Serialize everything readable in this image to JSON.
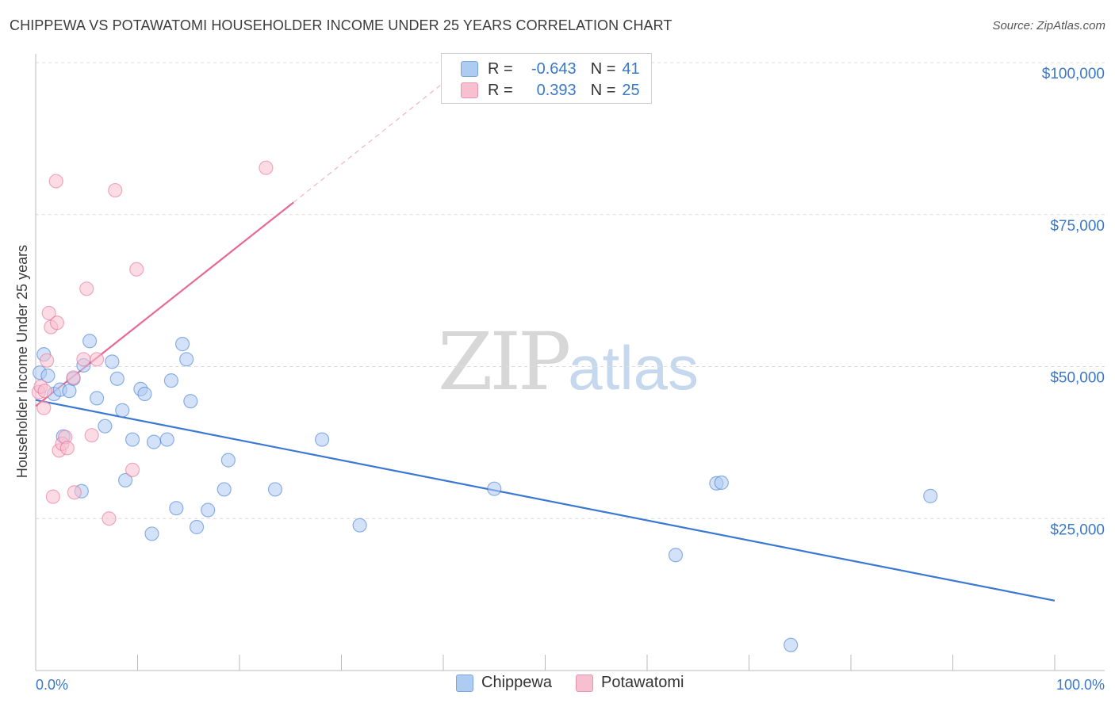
{
  "title": "CHIPPEWA VS POTAWATOMI HOUSEHOLDER INCOME UNDER 25 YEARS CORRELATION CHART",
  "source": "Source: ZipAtlas.com",
  "watermark": {
    "zip": "ZIP",
    "atlas": "atlas"
  },
  "legend": {
    "rows": [
      {
        "r_label": "R =",
        "r_value": "-0.643",
        "n_label": "N =",
        "n_value": "41",
        "color": "#aecbf2"
      },
      {
        "r_label": "R =",
        "r_value": "0.393",
        "n_label": "N =",
        "n_value": "25",
        "color": "#f7c0d0"
      }
    ]
  },
  "bottom_legend": [
    {
      "label": "Chippewa",
      "color": "#aecbf2"
    },
    {
      "label": "Potawatomi",
      "color": "#f7c0d0"
    }
  ],
  "chart_data": {
    "type": "scatter",
    "title": "CHIPPEWA VS POTAWATOMI HOUSEHOLDER INCOME UNDER 25 YEARS CORRELATION CHART",
    "ylabel": "Householder Income Under 25 years",
    "xlabel": "",
    "xlim": [
      0,
      100
    ],
    "ylim": [
      0,
      105000
    ],
    "x_tick_labels": [
      "0.0%",
      "100.0%"
    ],
    "y_ticks": [
      25000,
      50000,
      75000,
      100000
    ],
    "y_tick_labels": [
      "$25,000",
      "$50,000",
      "$75,000",
      "$100,000"
    ],
    "grid": "horizontal dashed",
    "series": [
      {
        "name": "Chippewa",
        "color": "#3a78d4",
        "fill": "#aecbf2",
        "points": [
          [
            0.4,
            49000
          ],
          [
            0.8,
            52000
          ],
          [
            1.2,
            48500
          ],
          [
            1.8,
            45500
          ],
          [
            2.4,
            46200
          ],
          [
            3.3,
            46000
          ],
          [
            2.7,
            38500
          ],
          [
            4.5,
            29500
          ],
          [
            3.7,
            48000
          ],
          [
            4.7,
            50200
          ],
          [
            5.3,
            54200
          ],
          [
            6.0,
            44800
          ],
          [
            6.8,
            40200
          ],
          [
            7.5,
            50800
          ],
          [
            8.0,
            48000
          ],
          [
            8.5,
            42800
          ],
          [
            8.8,
            31300
          ],
          [
            9.5,
            38000
          ],
          [
            10.3,
            46300
          ],
          [
            10.7,
            45500
          ],
          [
            11.4,
            22500
          ],
          [
            11.6,
            37600
          ],
          [
            12.9,
            38000
          ],
          [
            13.3,
            47700
          ],
          [
            13.8,
            26700
          ],
          [
            14.4,
            53700
          ],
          [
            14.8,
            51200
          ],
          [
            15.2,
            44300
          ],
          [
            15.8,
            23600
          ],
          [
            16.9,
            26400
          ],
          [
            18.5,
            29800
          ],
          [
            18.9,
            34600
          ],
          [
            23.5,
            29800
          ],
          [
            28.1,
            38000
          ],
          [
            31.8,
            23900
          ],
          [
            45.0,
            29900
          ],
          [
            62.8,
            19000
          ],
          [
            66.8,
            30800
          ],
          [
            67.3,
            30900
          ],
          [
            74.1,
            4200
          ],
          [
            87.8,
            28700
          ]
        ],
        "trend": {
          "x": [
            0,
            100
          ],
          "y": [
            44500,
            11500
          ]
        }
      },
      {
        "name": "Potawatomi",
        "color": "#e86a93",
        "fill": "#f7c0d0",
        "points": [
          [
            0.3,
            45800
          ],
          [
            0.5,
            46700
          ],
          [
            0.8,
            43200
          ],
          [
            1.1,
            51000
          ],
          [
            1.3,
            58800
          ],
          [
            1.5,
            56500
          ],
          [
            1.7,
            28600
          ],
          [
            2.0,
            80500
          ],
          [
            2.1,
            57200
          ],
          [
            2.3,
            36200
          ],
          [
            2.6,
            37300
          ],
          [
            2.9,
            38400
          ],
          [
            3.1,
            36600
          ],
          [
            3.7,
            48200
          ],
          [
            3.8,
            29300
          ],
          [
            4.7,
            51200
          ],
          [
            5.0,
            62800
          ],
          [
            5.5,
            38700
          ],
          [
            6.0,
            51200
          ],
          [
            7.2,
            25000
          ],
          [
            7.8,
            79000
          ],
          [
            9.5,
            33000
          ],
          [
            9.9,
            66000
          ],
          [
            22.6,
            82700
          ],
          [
            0.9,
            46000
          ]
        ],
        "trend": {
          "x": [
            0,
            25.3
          ],
          "y": [
            43500,
            77000
          ]
        },
        "trend_extension": {
          "x": [
            25.3,
            41
          ],
          "y": [
            77000,
            98000
          ]
        }
      }
    ]
  }
}
